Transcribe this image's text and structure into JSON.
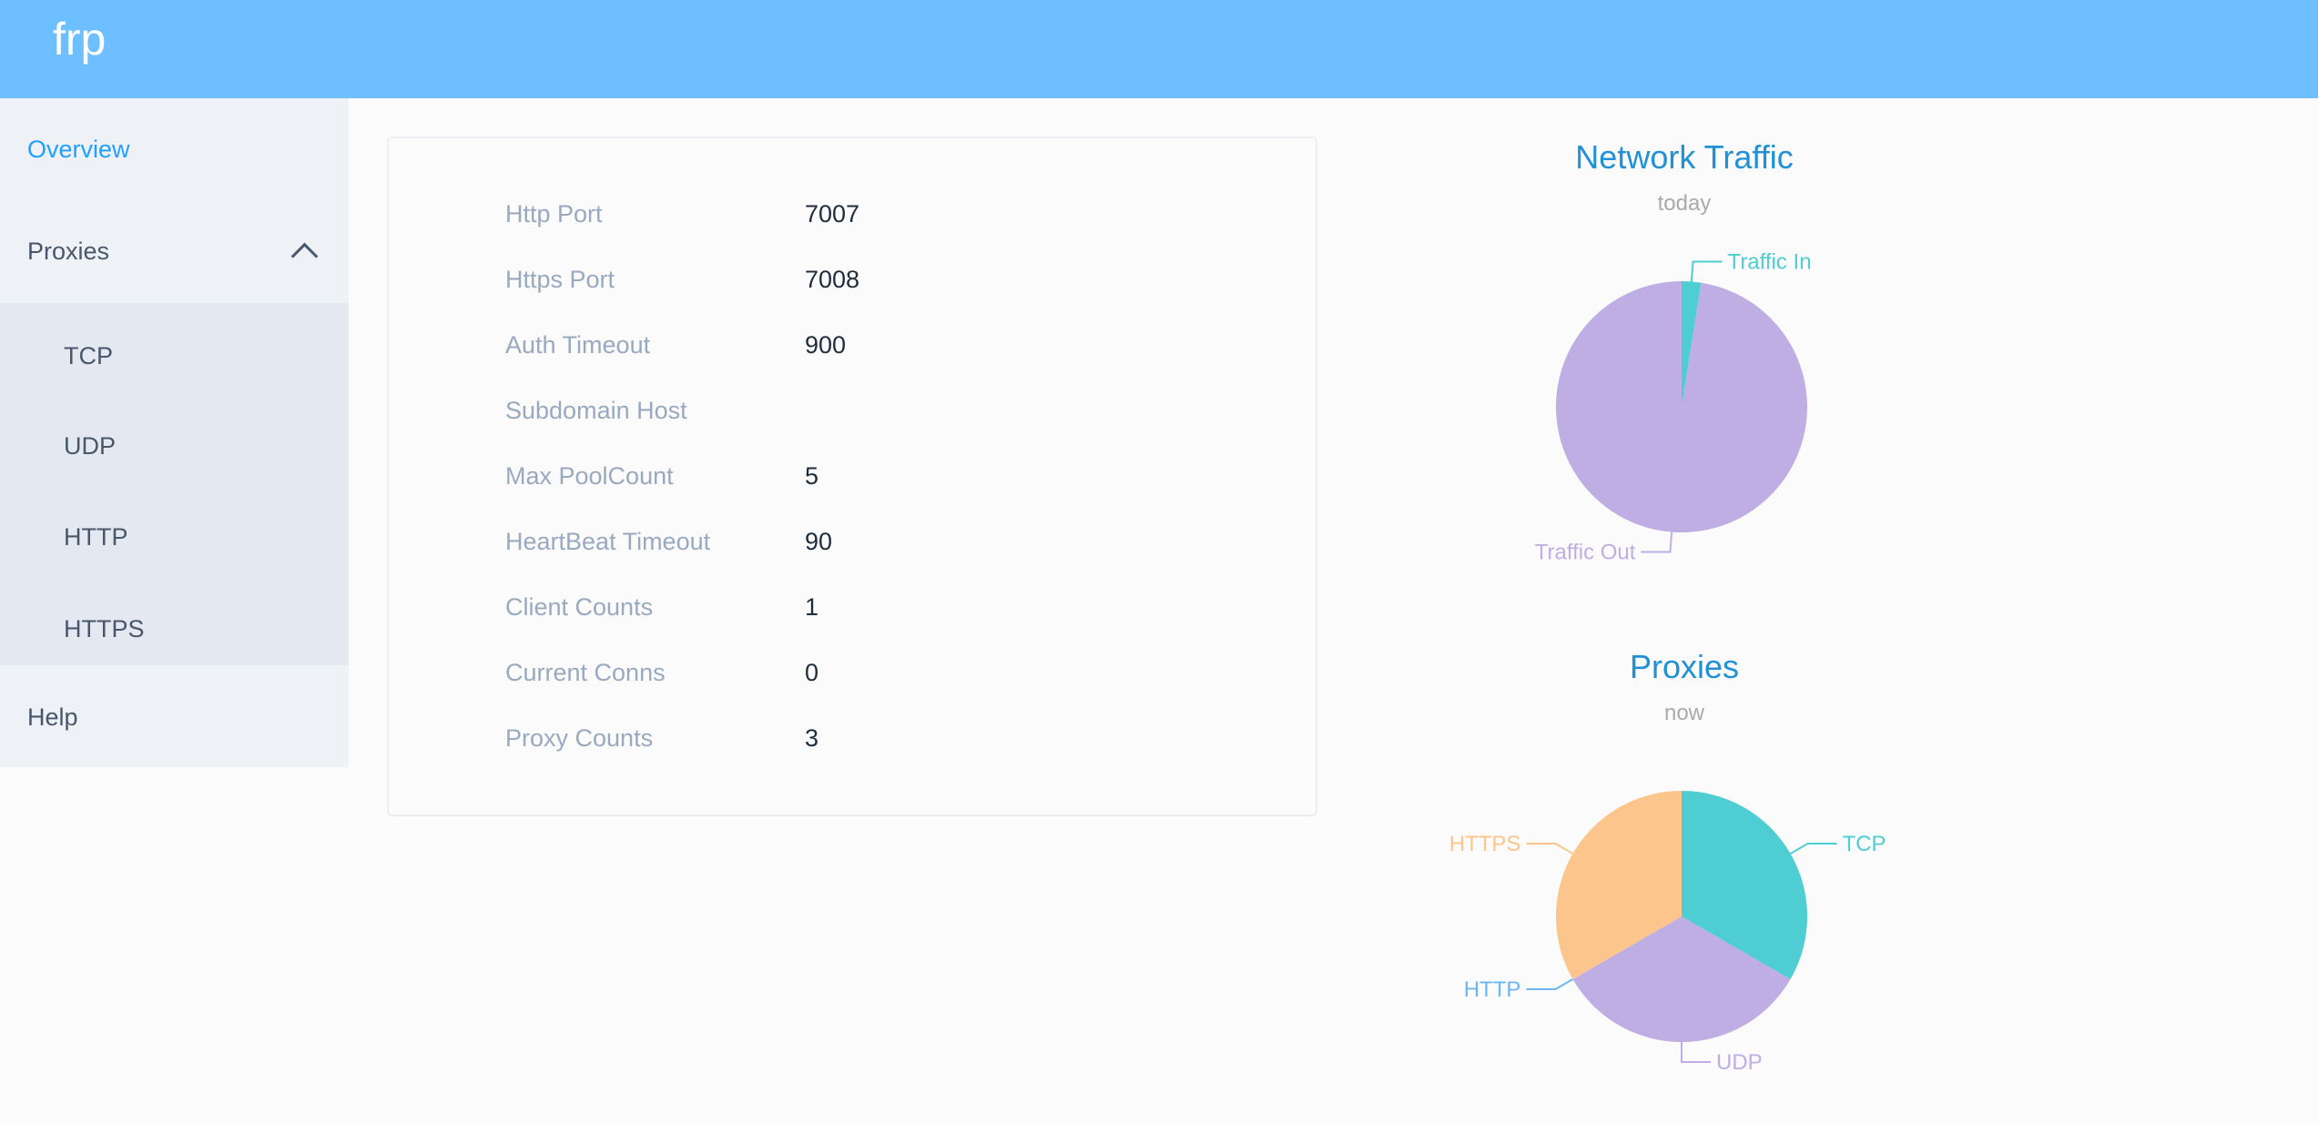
{
  "header": {
    "brand": "frp"
  },
  "sidebar": {
    "overview": "Overview",
    "proxies": "Proxies",
    "proxy_items": [
      "TCP",
      "UDP",
      "HTTP",
      "HTTPS"
    ],
    "help": "Help",
    "active": "Overview"
  },
  "server_info": [
    {
      "label": "Http Port",
      "value": "7007"
    },
    {
      "label": "Https Port",
      "value": "7008"
    },
    {
      "label": "Auth Timeout",
      "value": "900"
    },
    {
      "label": "Subdomain Host",
      "value": ""
    },
    {
      "label": "Max PoolCount",
      "value": "5"
    },
    {
      "label": "HeartBeat Timeout",
      "value": "90"
    },
    {
      "label": "Client Counts",
      "value": "1"
    },
    {
      "label": "Current Conns",
      "value": "0"
    },
    {
      "label": "Proxy Counts",
      "value": "3"
    }
  ],
  "chart_data": [
    {
      "type": "pie",
      "title": "Network Traffic",
      "subtitle": "today",
      "categories": [
        "Traffic In",
        "Traffic Out"
      ],
      "values": [
        2.5,
        97.5
      ],
      "colors": [
        "#4ecdd2",
        "#bfaee3"
      ]
    },
    {
      "type": "pie",
      "title": "Proxies",
      "subtitle": "now",
      "categories": [
        "TCP",
        "UDP",
        "HTTP",
        "HTTPS"
      ],
      "values": [
        1,
        1,
        0,
        1
      ],
      "colors": [
        "#4ecdd2",
        "#bfaee3",
        "#6cb6f5",
        "#fbc58b"
      ]
    }
  ]
}
